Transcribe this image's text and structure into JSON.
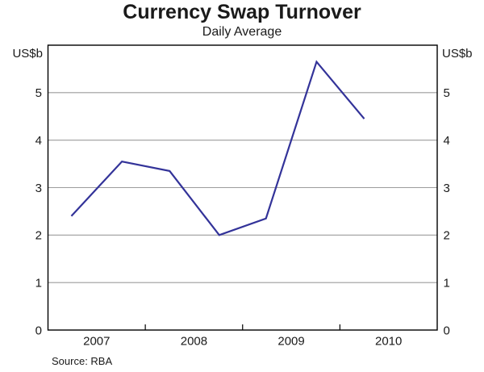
{
  "chart_data": {
    "type": "line",
    "title": "Currency Swap Turnover",
    "subtitle": "Daily Average",
    "ylabel_left": "US$b",
    "ylabel_right": "US$b",
    "ylim": [
      0,
      6
    ],
    "yticks": [
      0,
      1,
      2,
      3,
      4,
      5
    ],
    "xlim": [
      2007,
      2011
    ],
    "x_tick_labels": [
      {
        "label": "2007",
        "x": 2007.5
      },
      {
        "label": "2008",
        "x": 2008.5
      },
      {
        "label": "2009",
        "x": 2009.5
      },
      {
        "label": "2010",
        "x": 2010.5
      }
    ],
    "x_boundary_ticks": [
      2008,
      2009,
      2010
    ],
    "grid": "horizontal gridlines at each labeled y tick",
    "legend": "none",
    "series": [
      {
        "name": "Currency swap turnover",
        "color": "#333399",
        "points": [
          {
            "x": 2007.24,
            "value": 2.4
          },
          {
            "x": 2007.76,
            "value": 3.55
          },
          {
            "x": 2008.25,
            "value": 3.35
          },
          {
            "x": 2008.76,
            "value": 2.0
          },
          {
            "x": 2009.24,
            "value": 2.35
          },
          {
            "x": 2009.76,
            "value": 5.65
          },
          {
            "x": 2010.25,
            "value": 4.45
          }
        ]
      }
    ],
    "source": "Source: RBA",
    "colors": {
      "grid": "#9c9c9c",
      "frame": "#000000",
      "text": "#1a1a1a",
      "background": "#ffffff"
    }
  }
}
